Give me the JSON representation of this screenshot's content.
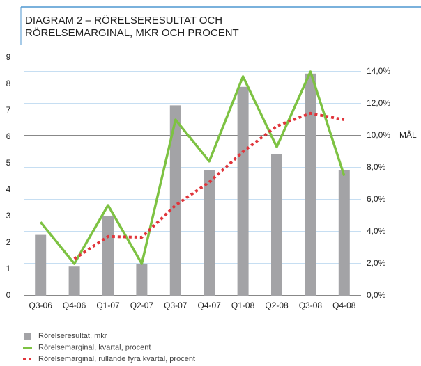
{
  "chart_data": {
    "type": "bar-line",
    "title": [
      "DIAGRAM 2 – RÖRELSERESULTAT OCH",
      "RÖRELSEMARGINAL, MKR OCH PROCENT"
    ],
    "categories": [
      "Q3-06",
      "Q4-06",
      "Q1-07",
      "Q2-07",
      "Q3-07",
      "Q4-07",
      "Q1-08",
      "Q2-08",
      "Q3-08",
      "Q4-08"
    ],
    "series": [
      {
        "name": "Rörelseresultat, mkr",
        "type": "bar",
        "color": "#a3a3a6",
        "values": [
          2.3,
          1.1,
          3.0,
          1.2,
          7.2,
          4.75,
          7.9,
          5.35,
          8.4,
          4.75
        ]
      },
      {
        "name": "Rörelsemarginal, kvartal, procent",
        "type": "line",
        "axis": "y2",
        "color": "#7dc242",
        "values": [
          4.6,
          2.0,
          5.65,
          2.0,
          11.0,
          8.4,
          13.7,
          9.3,
          14.0,
          7.5
        ]
      },
      {
        "name": "Rörelsemarginal, rullande fyra kvartal, procent",
        "type": "dotted",
        "axis": "y2",
        "color": "#e0353b",
        "values": [
          null,
          2.3,
          3.7,
          3.65,
          5.65,
          7.1,
          9.0,
          10.6,
          11.4,
          11.0
        ]
      }
    ],
    "ylim": [
      0,
      9
    ],
    "yticks": [
      0,
      1,
      2,
      3,
      4,
      5,
      6,
      7,
      8,
      9
    ],
    "y2lim": [
      0,
      14.87
    ],
    "y2ticks": [
      {
        "value": 0,
        "label": "0,0%"
      },
      {
        "value": 2,
        "label": "2,0%"
      },
      {
        "value": 4,
        "label": "4,0%"
      },
      {
        "value": 6,
        "label": "6,0%"
      },
      {
        "value": 8,
        "label": "8,0%"
      },
      {
        "value": 10,
        "label": "10,0%"
      },
      {
        "value": 12,
        "label": "12,0%"
      },
      {
        "value": 14,
        "label": "14,0%"
      }
    ],
    "target": {
      "label": "MÅL",
      "value": 10
    }
  }
}
